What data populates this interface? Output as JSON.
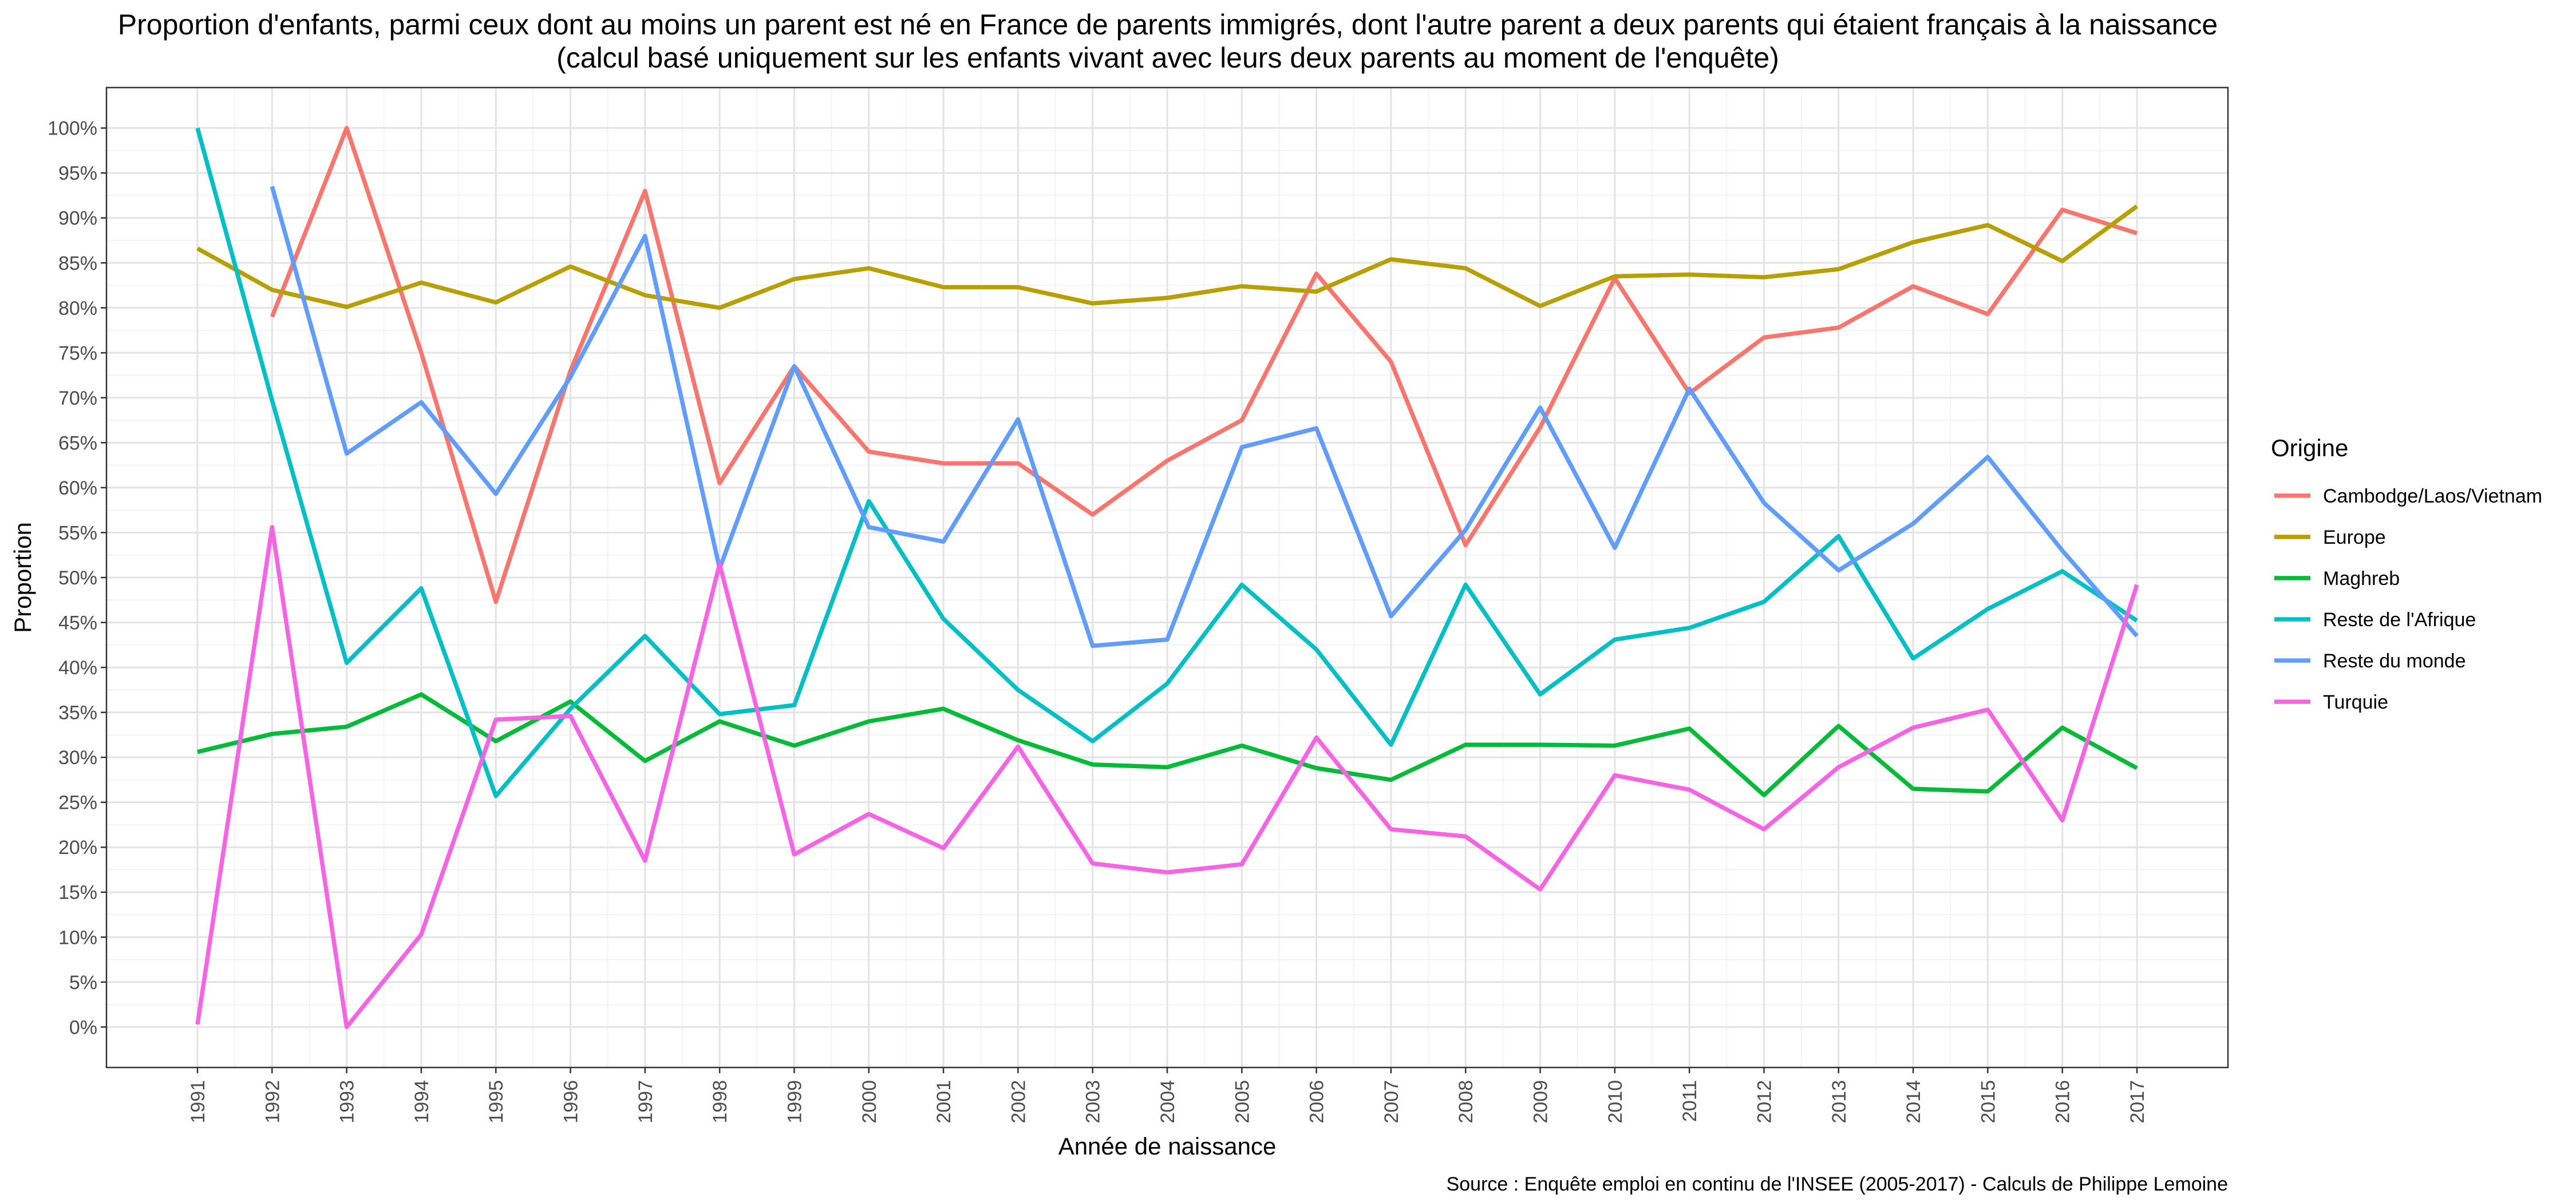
{
  "chart_data": {
    "type": "line",
    "title_lines": [
      "Proportion d'enfants, parmi ceux dont au moins un parent est né en France de parents immigrés, dont l'autre parent a deux parents qui étaient français à la naissance",
      "(calcul basé uniquement sur les enfants vivant avec leurs deux parents au moment de l'enquête)"
    ],
    "xlabel": "Année de naissance",
    "ylabel": "Proportion",
    "caption": "Source : Enquête emploi en continu de l'INSEE (2005-2017) - Calculs de Philippe Lemoine",
    "x": [
      1991,
      1992,
      1993,
      1994,
      1995,
      1996,
      1997,
      1998,
      1999,
      2000,
      2001,
      2002,
      2003,
      2004,
      2005,
      2006,
      2007,
      2008,
      2009,
      2010,
      2011,
      2012,
      2013,
      2014,
      2015,
      2016,
      2017
    ],
    "x_tick_labels": [
      "1991",
      "1992",
      "1993",
      "1994",
      "1995",
      "1996",
      "1997",
      "1998",
      "1999",
      "2000",
      "2001",
      "2002",
      "2003",
      "2004",
      "2005",
      "2006",
      "2007",
      "2008",
      "2009",
      "2010",
      "2011",
      "2012",
      "2013",
      "2014",
      "2015",
      "2016",
      "2017"
    ],
    "ylim": [
      -4.5,
      104.5
    ],
    "y_ticks": [
      0,
      5,
      10,
      15,
      20,
      25,
      30,
      35,
      40,
      45,
      50,
      55,
      60,
      65,
      70,
      75,
      80,
      85,
      90,
      95,
      100
    ],
    "y_tick_labels": [
      "0%",
      "5%",
      "10%",
      "15%",
      "20%",
      "25%",
      "30%",
      "35%",
      "40%",
      "45%",
      "50%",
      "55%",
      "60%",
      "65%",
      "70%",
      "75%",
      "80%",
      "85%",
      "90%",
      "95%",
      "100%"
    ],
    "grid": true,
    "legend": {
      "title": "Origine",
      "position": "right"
    },
    "series": [
      {
        "name": "Cambodge/Laos/Vietnam",
        "color": "#F8766D",
        "values": [
          null,
          79,
          100,
          75,
          47.3,
          73,
          93,
          60.5,
          73.5,
          64,
          62.7,
          62.7,
          57,
          63,
          67.5,
          83.8,
          74,
          53.6,
          66.7,
          83.3,
          70.5,
          76.7,
          77.8,
          82.4,
          79.3,
          90.9,
          88.3
        ]
      },
      {
        "name": "Europe",
        "color": "#B79F00",
        "values": [
          86.6,
          82,
          80.1,
          82.8,
          80.6,
          84.6,
          81.4,
          80,
          83.2,
          84.4,
          82.3,
          82.3,
          80.5,
          81.1,
          82.4,
          81.8,
          85.4,
          84.4,
          80.2,
          83.5,
          83.7,
          83.4,
          84.3,
          87.3,
          89.2,
          85.2,
          91.3
        ]
      },
      {
        "name": "Maghreb",
        "color": "#00BA38",
        "values": [
          30.6,
          32.6,
          33.4,
          37,
          31.8,
          36.2,
          29.6,
          34,
          31.3,
          34,
          35.4,
          31.9,
          29.2,
          28.9,
          31.3,
          28.8,
          27.5,
          31.4,
          31.4,
          31.3,
          33.2,
          25.8,
          33.5,
          26.5,
          26.2,
          33.3,
          28.8
        ]
      },
      {
        "name": "Reste de l'Afrique",
        "color": "#00BFC4",
        "values": [
          100,
          69.7,
          40.5,
          48.8,
          25.7,
          35.4,
          43.5,
          34.8,
          35.8,
          58.5,
          45.4,
          37.5,
          31.8,
          38.2,
          49.2,
          42,
          31.4,
          49.2,
          37,
          43.1,
          44.4,
          47.3,
          54.6,
          41,
          46.5,
          50.7,
          45.2
        ]
      },
      {
        "name": "Reste du monde",
        "color": "#619CFF",
        "values": [
          null,
          93.5,
          63.8,
          69.5,
          59.3,
          72.3,
          88,
          51,
          73.5,
          55.6,
          54,
          67.6,
          42.4,
          43.1,
          64.5,
          66.6,
          45.7,
          55.3,
          68.9,
          53.3,
          71,
          58.3,
          50.8,
          56,
          63.4,
          53,
          43.5
        ]
      },
      {
        "name": "Turquie",
        "color": "#F564E3",
        "values": [
          0.3,
          55.6,
          0,
          10.3,
          34.2,
          34.6,
          18.5,
          51.5,
          19.2,
          23.7,
          19.9,
          31.2,
          18.2,
          17.2,
          18.1,
          32.2,
          22,
          21.2,
          15.3,
          28,
          26.4,
          22,
          28.9,
          33.3,
          35.3,
          23,
          49.2
        ]
      }
    ]
  }
}
